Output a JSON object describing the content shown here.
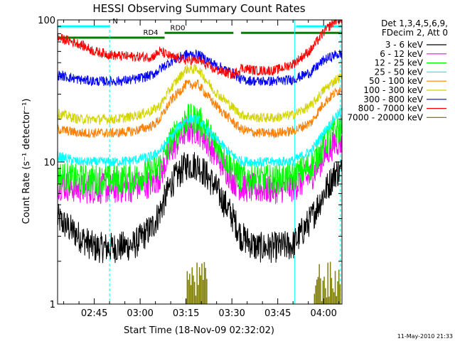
{
  "chart_data": {
    "type": "line",
    "title": "HESSI Observing Summary Count Rates",
    "xlabel": "Start Time (18-Nov-09 02:32:02)",
    "ylabel": "Count Rate (s⁻¹ detector⁻¹)",
    "yscale": "log",
    "ylim": [
      1,
      100
    ],
    "xlim_minutes": [
      33,
      126
    ],
    "grid": false,
    "legend_placement": "right",
    "legend_header": [
      "Det 1,3,4,5,6,9,",
      "FDecim 2, Att 0"
    ],
    "timestamp": "11-May-2010 21:33",
    "x_ticks": [
      {
        "label": "02:45",
        "minute": 45
      },
      {
        "label": "03:00",
        "minute": 60
      },
      {
        "label": "03:15",
        "minute": 75
      },
      {
        "label": "03:30",
        "minute": 90
      },
      {
        "label": "03:45",
        "minute": 105
      },
      {
        "label": "04:00",
        "minute": 120
      }
    ],
    "y_ticks": [
      {
        "label": "1",
        "value": 1
      },
      {
        "label": "10",
        "value": 10
      },
      {
        "label": "100",
        "value": 100
      }
    ],
    "time_points_minutes": [
      33,
      40,
      45,
      52,
      58,
      64,
      66.5,
      70,
      75,
      79,
      84,
      90.5,
      93,
      98,
      104,
      110,
      116,
      120,
      124,
      126
    ],
    "series": [
      {
        "name": "3 - 6 keV",
        "color": "#000000",
        "values": [
          4.0,
          3.0,
          2.5,
          2.5,
          2.6,
          3.5,
          4.5,
          7,
          9.5,
          9.5,
          7,
          4.0,
          3.0,
          2.5,
          2.5,
          2.6,
          4.0,
          6,
          8.5,
          8.5
        ]
      },
      {
        "name": "6 - 12 keV",
        "color": "#ff00ff",
        "values": [
          7,
          6.5,
          6.5,
          6.5,
          6.7,
          7.2,
          8,
          12,
          17,
          17,
          12,
          7.5,
          6.7,
          6.5,
          6.5,
          6.7,
          8,
          11,
          14,
          14
        ]
      },
      {
        "name": "12 - 25 keV",
        "color": "#00ff00",
        "values": [
          8,
          7.5,
          7.5,
          7.5,
          7.7,
          8.5,
          9.5,
          14,
          20,
          20,
          14,
          9,
          7.8,
          7.5,
          7.5,
          7.8,
          9.5,
          13,
          17,
          17
        ]
      },
      {
        "name": "25 - 50 keV",
        "color": "#00ffff",
        "values": [
          11,
          10,
          10,
          10,
          10.3,
          11,
          12,
          15,
          20,
          20,
          15,
          11,
          10.2,
          10,
          10,
          10.2,
          12,
          16,
          21,
          23
        ]
      },
      {
        "name": "50 - 100 keV",
        "color": "#ff8000",
        "values": [
          17,
          16,
          16,
          16,
          16.5,
          18,
          20,
          27,
          35,
          35,
          26,
          19,
          17,
          16,
          16,
          16.5,
          19,
          26,
          31,
          33
        ]
      },
      {
        "name": "100 - 300 keV",
        "color": "#d4d400",
        "values": [
          22,
          20,
          20,
          20,
          21,
          23,
          25,
          33,
          45,
          45,
          32,
          24,
          21.5,
          20.5,
          20.5,
          21.5,
          25,
          32,
          38,
          40
        ]
      },
      {
        "name": "300 - 800 keV",
        "color": "#0000ff",
        "values": [
          41,
          38,
          37,
          37,
          38,
          41,
          45,
          51,
          57,
          57,
          49,
          42,
          38,
          37,
          37,
          38,
          43,
          52,
          57,
          57
        ]
      },
      {
        "name": "800 - 7000 keV",
        "color": "#ff0000",
        "values": [
          75,
          68,
          60,
          56,
          55,
          55,
          60,
          55,
          52,
          52,
          45,
          41,
          46,
          44,
          44,
          49,
          62,
          82,
          100,
          100
        ]
      }
    ],
    "spike_series": {
      "name": "7000 - 20000 keV",
      "color": "#808000",
      "intervals_minutes": [
        [
          75,
          82
        ],
        [
          117,
          125.5
        ]
      ],
      "range": [
        1,
        2
      ]
    },
    "instrument_bars": [
      {
        "label": "N",
        "color": "#00ffff",
        "value": 90,
        "intervals_minutes": [
          [
            33,
            50
          ],
          [
            111,
            126
          ]
        ]
      },
      {
        "label": "RD0",
        "color": "#008000",
        "value": 81,
        "intervals_minutes": [
          [
            68,
            90.5
          ],
          [
            93,
            126
          ]
        ]
      },
      {
        "label": "RD4",
        "color": "#008000",
        "value": 75,
        "intervals_minutes": [
          [
            33,
            68
          ]
        ]
      }
    ],
    "vertical_lines": [
      {
        "color": "#00ffff",
        "minute": 50,
        "style": "dashed"
      },
      {
        "color": "#00ffff",
        "minute": 110.5,
        "style": "solid"
      },
      {
        "color": "#00ffff",
        "minute": 125.5,
        "style": "dashed"
      }
    ]
  }
}
